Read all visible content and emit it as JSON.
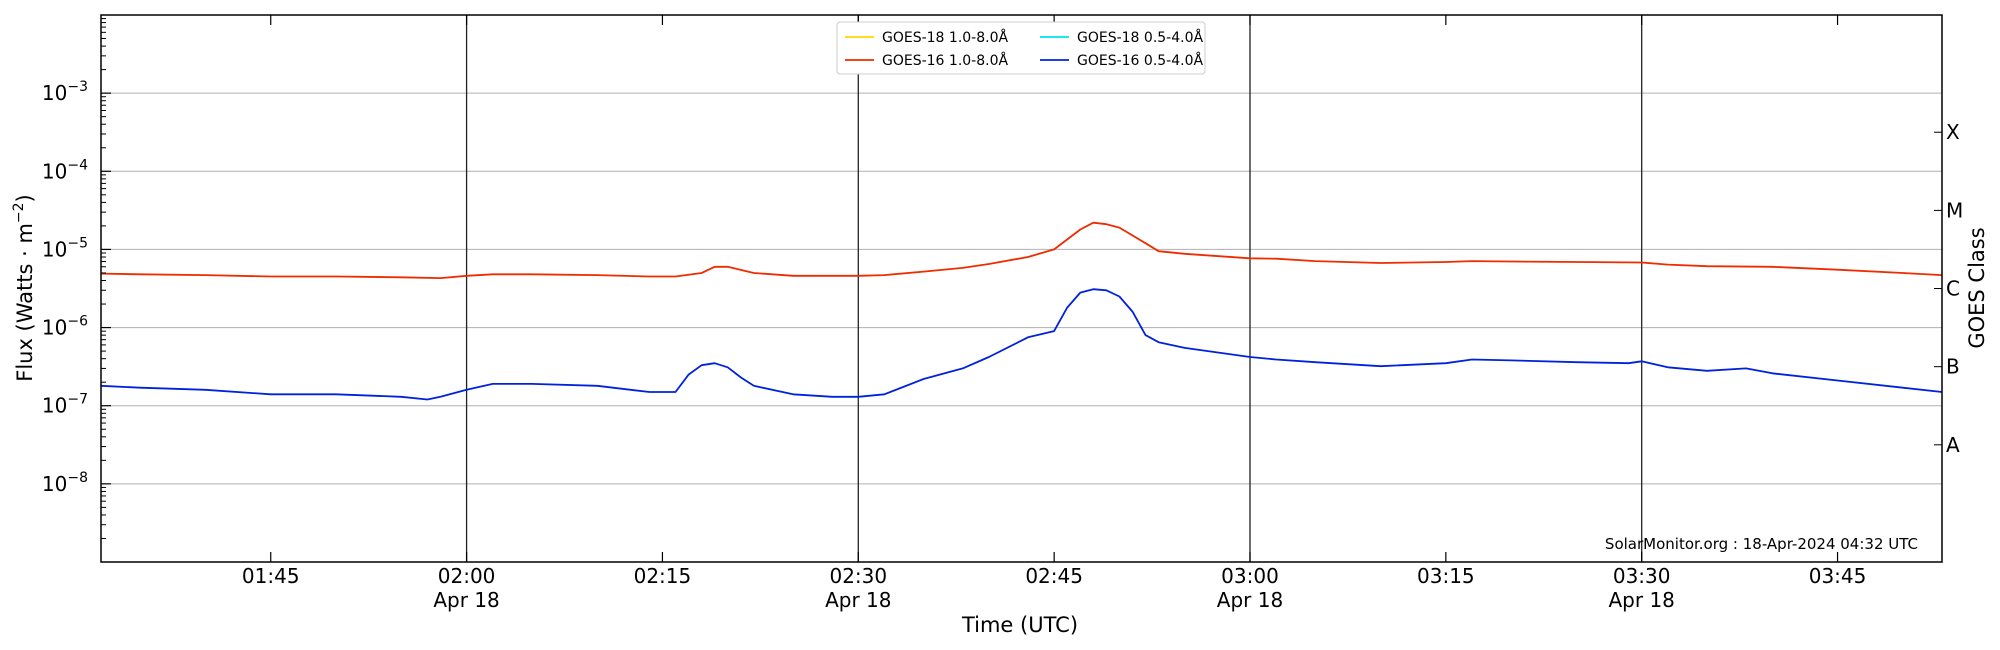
{
  "chart_data": {
    "type": "line",
    "title": "",
    "xlabel": "Time (UTC)",
    "ylabel": "Flux (Watts · m",
    "ylabel_sup": "−2",
    "ylabel_close": ")",
    "right_label": "GOES Class",
    "credit": "SolarMonitor.org : 18-Apr-2024 04:32 UTC",
    "y_scale": "log",
    "ylim": [
      1e-09,
      0.01
    ],
    "xlim": [
      "01:32",
      "03:53"
    ],
    "grid": "horizontal",
    "legend_placement": "top-center",
    "x_ticks": [
      {
        "time": "01:45",
        "label": "01:45",
        "date": ""
      },
      {
        "time": "02:00",
        "label": "02:00",
        "date": "Apr 18"
      },
      {
        "time": "02:15",
        "label": "02:15",
        "date": ""
      },
      {
        "time": "02:30",
        "label": "02:30",
        "date": "Apr 18"
      },
      {
        "time": "02:45",
        "label": "02:45",
        "date": ""
      },
      {
        "time": "03:00",
        "label": "03:00",
        "date": "Apr 18"
      },
      {
        "time": "03:15",
        "label": "03:15",
        "date": ""
      },
      {
        "time": "03:30",
        "label": "03:30",
        "date": "Apr 18"
      },
      {
        "time": "03:45",
        "label": "03:45",
        "date": ""
      }
    ],
    "y_ticks": [
      {
        "value": 1e-08,
        "base": "10",
        "exp": "−8"
      },
      {
        "value": 1e-07,
        "base": "10",
        "exp": "−7"
      },
      {
        "value": 1e-06,
        "base": "10",
        "exp": "−6"
      },
      {
        "value": 1e-05,
        "base": "10",
        "exp": "−5"
      },
      {
        "value": 0.0001,
        "base": "10",
        "exp": "−4"
      },
      {
        "value": 0.001,
        "base": "10",
        "exp": "−3"
      }
    ],
    "vertical_lines": [
      "02:00",
      "02:30",
      "03:00",
      "03:30"
    ],
    "goes_classes": [
      {
        "label": "A",
        "value": 3.16e-08
      },
      {
        "label": "B",
        "value": 3.16e-07
      },
      {
        "label": "C",
        "value": 3.16e-06
      },
      {
        "label": "M",
        "value": 3.16e-05
      },
      {
        "label": "X",
        "value": 0.000316
      }
    ],
    "series": [
      {
        "name": "GOES-18 1.0-8.0Å",
        "color": "#ffd700",
        "x": [],
        "values": []
      },
      {
        "name": "GOES-18 0.5-4.0Å",
        "color": "#00e5ee",
        "x": [],
        "values": []
      },
      {
        "name": "GOES-16 1.0-8.0Å",
        "color": "#ee2c00",
        "x": [
          "01:32",
          "01:35",
          "01:40",
          "01:45",
          "01:50",
          "01:55",
          "01:58",
          "02:00",
          "02:02",
          "02:05",
          "02:10",
          "02:14",
          "02:16",
          "02:18",
          "02:19",
          "02:20",
          "02:22",
          "02:25",
          "02:30",
          "02:32",
          "02:35",
          "02:38",
          "02:40",
          "02:43",
          "02:45",
          "02:47",
          "02:48",
          "02:49",
          "02:50",
          "02:52",
          "02:53",
          "02:55",
          "03:00",
          "03:02",
          "03:05",
          "03:10",
          "03:15",
          "03:17",
          "03:20",
          "03:25",
          "03:30",
          "03:32",
          "03:35",
          "03:40",
          "03:45",
          "03:50",
          "03:53"
        ],
        "values": [
          4.9e-06,
          4.8e-06,
          4.7e-06,
          4.5e-06,
          4.5e-06,
          4.4e-06,
          4.3e-06,
          4.6e-06,
          4.8e-06,
          4.8e-06,
          4.7e-06,
          4.5e-06,
          4.5e-06,
          5e-06,
          6e-06,
          6e-06,
          5e-06,
          4.6e-06,
          4.6e-06,
          4.7e-06,
          5.2e-06,
          5.8e-06,
          6.5e-06,
          8e-06,
          1e-05,
          1.8e-05,
          2.2e-05,
          2.1e-05,
          1.9e-05,
          1.2e-05,
          9.5e-06,
          8.8e-06,
          7.7e-06,
          7.6e-06,
          7.1e-06,
          6.7e-06,
          6.9e-06,
          7.1e-06,
          7e-06,
          6.9e-06,
          6.8e-06,
          6.4e-06,
          6.1e-06,
          6e-06,
          5.5e-06,
          5e-06,
          4.7e-06
        ]
      },
      {
        "name": "GOES-16 0.5-4.0Å",
        "color": "#0022dd",
        "x": [
          "01:32",
          "01:35",
          "01:40",
          "01:45",
          "01:50",
          "01:55",
          "01:57",
          "01:58",
          "02:00",
          "02:02",
          "02:05",
          "02:10",
          "02:14",
          "02:16",
          "02:17",
          "02:18",
          "02:19",
          "02:20",
          "02:21",
          "02:22",
          "02:25",
          "02:28",
          "02:30",
          "02:32",
          "02:35",
          "02:38",
          "02:40",
          "02:43",
          "02:45",
          "02:46",
          "02:47",
          "02:48",
          "02:49",
          "02:50",
          "02:51",
          "02:52",
          "02:53",
          "02:55",
          "03:00",
          "03:02",
          "03:05",
          "03:10",
          "03:15",
          "03:17",
          "03:20",
          "03:25",
          "03:29",
          "03:30",
          "03:32",
          "03:35",
          "03:38",
          "03:40",
          "03:45",
          "03:50",
          "03:53"
        ],
        "values": [
          1.8e-07,
          1.7e-07,
          1.6e-07,
          1.4e-07,
          1.4e-07,
          1.3e-07,
          1.2e-07,
          1.3e-07,
          1.6e-07,
          1.9e-07,
          1.9e-07,
          1.8e-07,
          1.5e-07,
          1.5e-07,
          2.5e-07,
          3.3e-07,
          3.5e-07,
          3.1e-07,
          2.3e-07,
          1.8e-07,
          1.4e-07,
          1.3e-07,
          1.3e-07,
          1.4e-07,
          2.2e-07,
          3e-07,
          4.2e-07,
          7.5e-07,
          9e-07,
          1.8e-06,
          2.8e-06,
          3.1e-06,
          3e-06,
          2.5e-06,
          1.6e-06,
          8e-07,
          6.5e-07,
          5.5e-07,
          4.2e-07,
          3.9e-07,
          3.6e-07,
          3.2e-07,
          3.5e-07,
          3.9e-07,
          3.8e-07,
          3.6e-07,
          3.5e-07,
          3.7e-07,
          3.1e-07,
          2.8e-07,
          3e-07,
          2.6e-07,
          2.1e-07,
          1.7e-07,
          1.5e-07
        ]
      }
    ]
  }
}
